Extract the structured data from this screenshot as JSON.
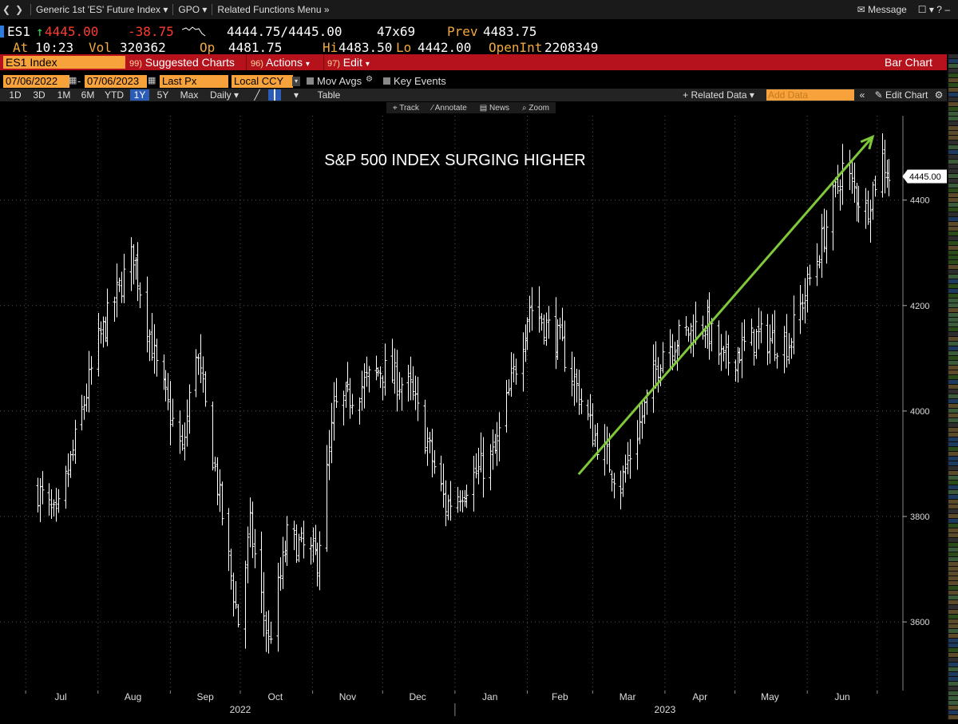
{
  "nav": {
    "title": "Generic 1st 'ES' Future Index",
    "gpo": "GPO",
    "related": "Related Functions Menu",
    "message": "Message"
  },
  "quote": {
    "ticker": "ES1",
    "last": "4445.00",
    "change": "-38.75",
    "bid_ask": "4444.75/4445.00",
    "size": "47x69",
    "prev_label": "Prev",
    "prev": "4483.75",
    "at_label": "At",
    "time": "10:23",
    "vol_label": "Vol",
    "vol": "320362",
    "op_label": "Op",
    "open": "4481.75",
    "hi_label": "Hi",
    "high": "4483.50",
    "lo_label": "Lo",
    "low": "4442.00",
    "oi_label": "OpenInt",
    "open_int": "2208349"
  },
  "menu": {
    "index": "ES1 Index",
    "suggested_num": "99)",
    "suggested": "Suggested Charts",
    "actions_num": "96)",
    "actions": "Actions",
    "edit_num": "97)",
    "edit": "Edit",
    "chart_type": "Bar Chart"
  },
  "controls": {
    "start_date": "07/06/2022",
    "end_date": "07/06/2023",
    "field": "Last Px",
    "currency": "Local CCY",
    "mov_avgs": "Mov Avgs",
    "key_events": "Key Events",
    "periods": [
      "1D",
      "3D",
      "1M",
      "6M",
      "YTD",
      "1Y",
      "5Y",
      "Max"
    ],
    "selected_period": "1Y",
    "frequency": "Daily",
    "table": "Table",
    "related_data": "Related Data",
    "add_data": "Add Data",
    "edit_chart": "Edit Chart"
  },
  "toolbar": {
    "track": "Track",
    "annotate": "Annotate",
    "news": "News",
    "zoom": "Zoom"
  },
  "colors": {
    "accent": "#f7a23a",
    "menu_bar": "#b5121b",
    "arrow": "#7ec83a",
    "bars": "#ffffff"
  },
  "chart_data": {
    "type": "bar",
    "title": "S&P 500 INDEX SURGING HIGHER",
    "last_price_label": "4445.00",
    "ylim": [
      3470,
      4560
    ],
    "y_ticks": [
      3600,
      3800,
      4000,
      4200,
      4400
    ],
    "x_tick_labels": [
      "Jul",
      "Aug",
      "Sep",
      "Oct",
      "Nov",
      "Dec",
      "Jan",
      "Feb",
      "Mar",
      "Apr",
      "May",
      "Jun"
    ],
    "year_labels": [
      "2022",
      "2023"
    ],
    "frequency": "daily OHLC",
    "path": [
      {
        "date": "2022-07-06",
        "close": 3850
      },
      {
        "date": "2022-07-14",
        "close": 3790
      },
      {
        "date": "2022-08-01",
        "close": 4130
      },
      {
        "date": "2022-08-16",
        "close": 4300
      },
      {
        "date": "2022-08-26",
        "close": 4080
      },
      {
        "date": "2022-09-06",
        "close": 3920
      },
      {
        "date": "2022-09-12",
        "close": 4120
      },
      {
        "date": "2022-09-30",
        "close": 3600
      },
      {
        "date": "2022-10-05",
        "close": 3780
      },
      {
        "date": "2022-10-13",
        "close": 3560
      },
      {
        "date": "2022-10-21",
        "close": 3760
      },
      {
        "date": "2022-11-03",
        "close": 3720
      },
      {
        "date": "2022-11-10",
        "close": 4000
      },
      {
        "date": "2022-11-30",
        "close": 4080
      },
      {
        "date": "2022-12-13",
        "close": 4040
      },
      {
        "date": "2022-12-28",
        "close": 3820
      },
      {
        "date": "2023-01-18",
        "close": 3920
      },
      {
        "date": "2023-02-02",
        "close": 4200
      },
      {
        "date": "2023-02-15",
        "close": 4130
      },
      {
        "date": "2023-03-01",
        "close": 3960
      },
      {
        "date": "2023-03-13",
        "close": 3860
      },
      {
        "date": "2023-03-31",
        "close": 4120
      },
      {
        "date": "2023-04-18",
        "close": 4170
      },
      {
        "date": "2023-04-26",
        "close": 4090
      },
      {
        "date": "2023-05-10",
        "close": 4140
      },
      {
        "date": "2023-05-24",
        "close": 4130
      },
      {
        "date": "2023-06-05",
        "close": 4290
      },
      {
        "date": "2023-06-16",
        "close": 4460
      },
      {
        "date": "2023-06-26",
        "close": 4380
      },
      {
        "date": "2023-07-03",
        "close": 4480
      },
      {
        "date": "2023-07-06",
        "close": 4445
      }
    ],
    "annotation": {
      "type": "arrow",
      "from": {
        "date": "2023-02-23",
        "value": 3880
      },
      "to": {
        "date": "2023-06-29",
        "value": 4520
      }
    }
  }
}
